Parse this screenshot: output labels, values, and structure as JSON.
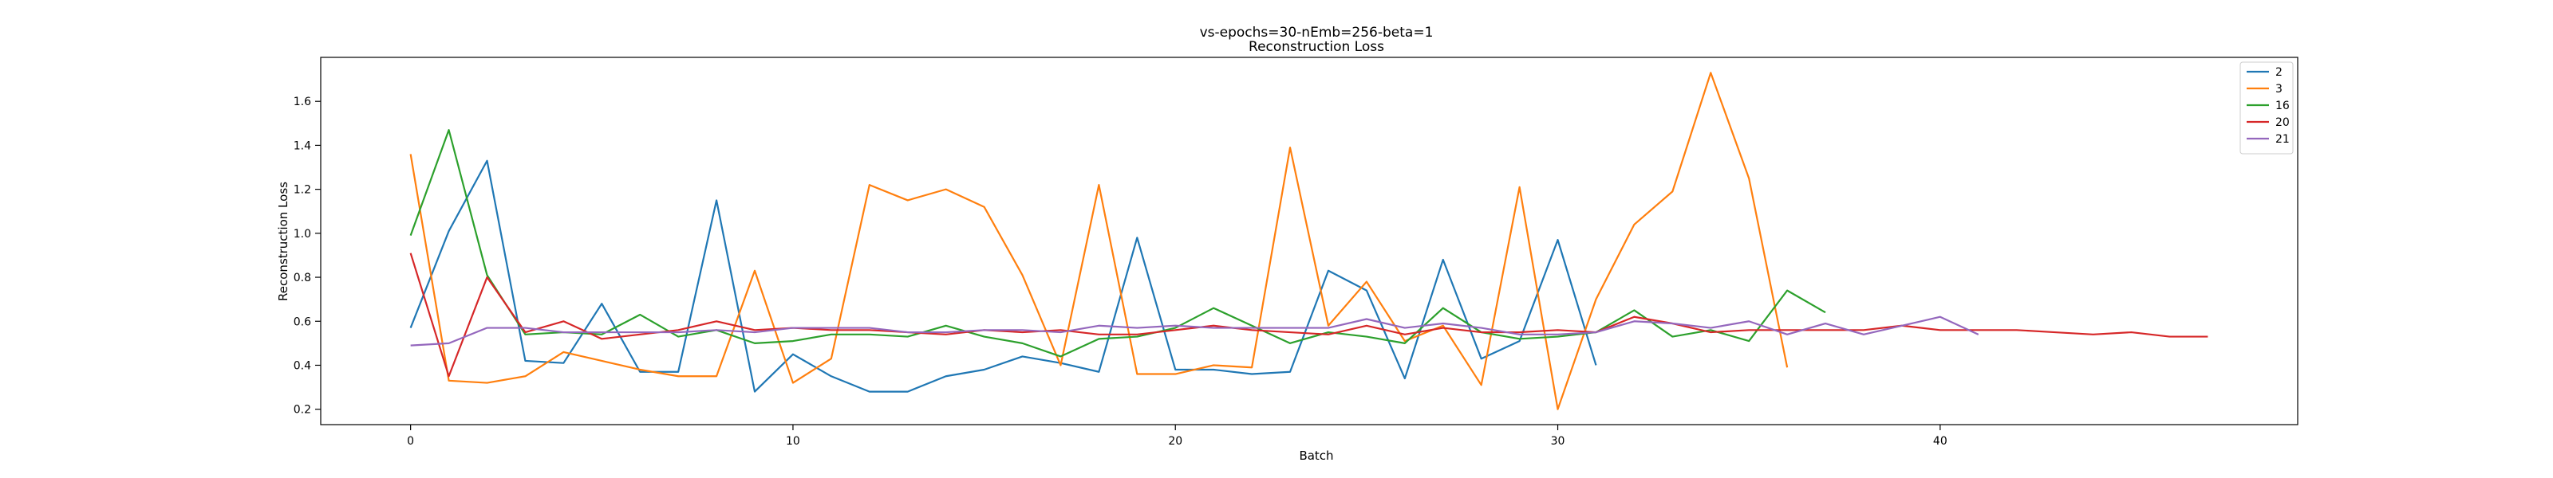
{
  "chart_data": {
    "type": "line",
    "title": "vs-epochs=30-nEmb=256-beta=1",
    "subtitle": "Reconstruction Loss",
    "xlabel": "Batch",
    "ylabel": "Reconstruction Loss",
    "xlim": [
      -2.35,
      49.35
    ],
    "ylim": [
      0.13,
      1.8
    ],
    "xticks": [
      0,
      10,
      20,
      30,
      40
    ],
    "yticks": [
      0.2,
      0.4,
      0.6,
      0.8,
      1.0,
      1.2,
      1.4,
      1.6
    ],
    "grid": false,
    "legend_position": "top-right",
    "series": [
      {
        "name": "2",
        "color": "#1f77b4",
        "x": [
          0,
          1,
          2,
          3,
          4,
          5,
          6,
          7,
          8,
          9,
          10,
          11,
          12,
          13,
          14,
          15,
          16,
          17,
          18,
          19,
          20,
          21,
          22,
          23,
          24,
          25,
          26,
          27,
          28,
          29,
          30,
          31
        ],
        "values": [
          0.57,
          1.01,
          1.33,
          0.42,
          0.41,
          0.68,
          0.37,
          0.37,
          1.15,
          0.28,
          0.45,
          0.35,
          0.28,
          0.28,
          0.35,
          0.38,
          0.44,
          0.41,
          0.37,
          0.98,
          0.38,
          0.38,
          0.36,
          0.37,
          0.83,
          0.74,
          0.34,
          0.88,
          0.43,
          0.51,
          0.97,
          0.4
        ]
      },
      {
        "name": "3",
        "color": "#ff7f0e",
        "x": [
          0,
          1,
          2,
          3,
          4,
          5,
          6,
          7,
          8,
          9,
          10,
          11,
          12,
          13,
          14,
          15,
          16,
          17,
          18,
          19,
          20,
          21,
          22,
          23,
          24,
          25,
          26,
          27,
          28,
          29,
          30,
          31,
          32,
          33,
          34,
          35,
          36
        ],
        "values": [
          1.36,
          0.33,
          0.32,
          0.35,
          0.46,
          0.42,
          0.38,
          0.35,
          0.35,
          0.83,
          0.32,
          0.43,
          1.22,
          1.15,
          1.2,
          1.12,
          0.81,
          0.4,
          1.22,
          0.36,
          0.36,
          0.4,
          0.39,
          1.39,
          0.58,
          0.78,
          0.51,
          0.58,
          0.31,
          1.21,
          0.2,
          0.7,
          1.04,
          1.19,
          1.73,
          1.25,
          0.39
        ]
      },
      {
        "name": "16",
        "color": "#2ca02c",
        "x": [
          0,
          1,
          2,
          3,
          4,
          5,
          6,
          7,
          8,
          9,
          10,
          11,
          12,
          13,
          14,
          15,
          16,
          17,
          18,
          19,
          20,
          21,
          22,
          23,
          24,
          25,
          26,
          27,
          28,
          29,
          30,
          31,
          32,
          33,
          34,
          35,
          36,
          37
        ],
        "values": [
          0.99,
          1.47,
          0.81,
          0.54,
          0.55,
          0.54,
          0.63,
          0.53,
          0.56,
          0.5,
          0.51,
          0.54,
          0.54,
          0.53,
          0.58,
          0.53,
          0.5,
          0.44,
          0.52,
          0.53,
          0.57,
          0.66,
          0.58,
          0.5,
          0.55,
          0.53,
          0.5,
          0.66,
          0.55,
          0.52,
          0.53,
          0.55,
          0.65,
          0.53,
          0.56,
          0.51,
          0.74,
          0.64
        ]
      },
      {
        "name": "20",
        "color": "#d62728",
        "x": [
          0,
          1,
          2,
          3,
          4,
          5,
          6,
          7,
          8,
          9,
          10,
          11,
          12,
          13,
          14,
          15,
          16,
          17,
          18,
          19,
          20,
          21,
          22,
          23,
          24,
          25,
          26,
          27,
          28,
          29,
          30,
          31,
          32,
          33,
          34,
          35,
          36,
          37,
          38,
          39,
          40,
          41,
          42,
          43,
          44,
          45,
          46,
          47
        ],
        "values": [
          0.91,
          0.35,
          0.8,
          0.55,
          0.6,
          0.52,
          0.54,
          0.56,
          0.6,
          0.56,
          0.57,
          0.56,
          0.56,
          0.55,
          0.54,
          0.56,
          0.55,
          0.56,
          0.54,
          0.54,
          0.56,
          0.58,
          0.56,
          0.55,
          0.54,
          0.58,
          0.54,
          0.57,
          0.55,
          0.55,
          0.56,
          0.55,
          0.62,
          0.59,
          0.55,
          0.56,
          0.56,
          0.56,
          0.56,
          0.58,
          0.56,
          0.56,
          0.56,
          0.55,
          0.54,
          0.55,
          0.53,
          0.53
        ]
      },
      {
        "name": "21",
        "color": "#9467bd",
        "x": [
          0,
          1,
          2,
          3,
          4,
          5,
          6,
          7,
          8,
          9,
          10,
          11,
          12,
          13,
          14,
          15,
          16,
          17,
          18,
          19,
          20,
          21,
          22,
          23,
          24,
          25,
          26,
          27,
          28,
          29,
          30,
          31,
          32,
          33,
          34,
          35,
          36,
          37,
          38,
          39,
          40,
          41
        ],
        "values": [
          0.49,
          0.5,
          0.57,
          0.57,
          0.55,
          0.55,
          0.55,
          0.55,
          0.56,
          0.55,
          0.57,
          0.57,
          0.57,
          0.55,
          0.55,
          0.56,
          0.56,
          0.55,
          0.58,
          0.57,
          0.58,
          0.57,
          0.57,
          0.57,
          0.57,
          0.61,
          0.57,
          0.59,
          0.57,
          0.54,
          0.54,
          0.55,
          0.6,
          0.59,
          0.57,
          0.6,
          0.54,
          0.59,
          0.54,
          0.58,
          0.62,
          0.54
        ]
      }
    ]
  }
}
